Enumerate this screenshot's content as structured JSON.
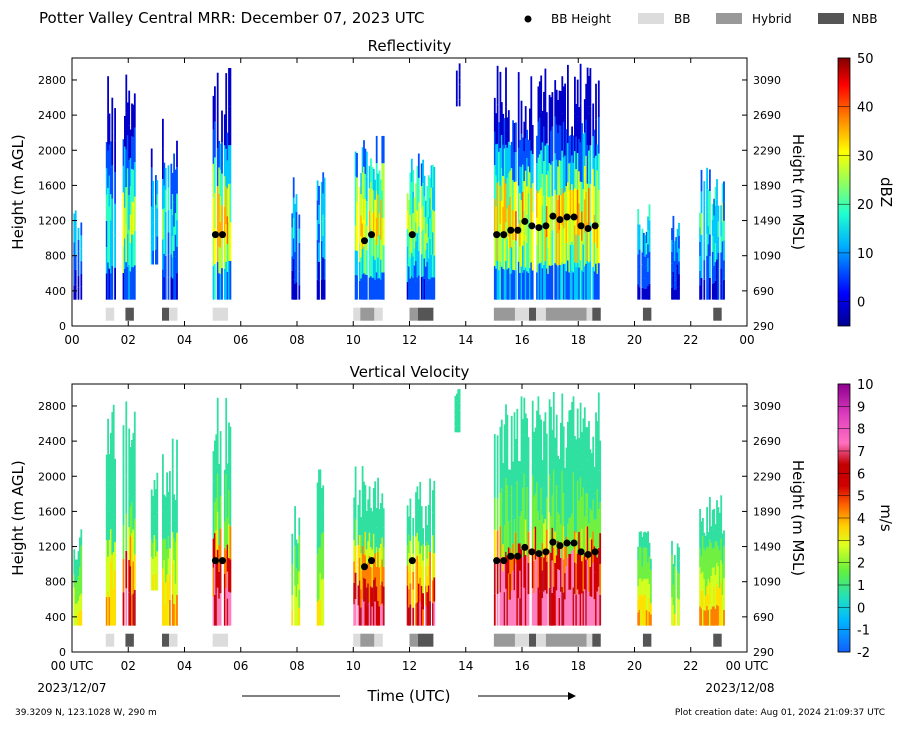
{
  "header": {
    "title": "Potter Valley Central MRR:  December 07, 2023 UTC",
    "legend": [
      {
        "label": "BB Height",
        "symbol": "dot",
        "color": "#000000"
      },
      {
        "label": "BB",
        "symbol": "box",
        "color": "#dcdcdc"
      },
      {
        "label": "Hybrid",
        "symbol": "box",
        "color": "#999999"
      },
      {
        "label": "NBB",
        "symbol": "box",
        "color": "#555555"
      }
    ]
  },
  "footer": {
    "location": "39.3209 N, 123.1028 W, 290 m",
    "creation": "Plot creation date: Aug 01, 2024 21:09:37 UTC",
    "start_date": "2023/12/07",
    "end_date": "2023/12/08",
    "xlabel": "Time (UTC)"
  },
  "chart_data": [
    {
      "type": "heatmap",
      "title": "Reflectivity",
      "ylabel": "Height (m AGL)",
      "ylabel_right": "Height (m MSL)",
      "xlim": [
        0,
        24
      ],
      "ylim": [
        0,
        3050
      ],
      "x_ticks": [
        "00",
        "02",
        "04",
        "06",
        "08",
        "10",
        "12",
        "14",
        "16",
        "18",
        "20",
        "22",
        "00"
      ],
      "y_ticks": [
        0,
        400,
        800,
        1200,
        1600,
        2000,
        2400,
        2800
      ],
      "y_ticks_right": [
        290,
        690,
        1090,
        1490,
        1890,
        2290,
        2690,
        3090
      ],
      "colorbar": {
        "label": "dBZ",
        "min": -5,
        "max": 50,
        "ticks": [
          0,
          10,
          20,
          30,
          40,
          50
        ]
      },
      "bb_height": [
        [
          5.1,
          1040
        ],
        [
          5.35,
          1040
        ],
        [
          10.4,
          970
        ],
        [
          10.65,
          1040
        ],
        [
          12.1,
          1040
        ],
        [
          15.1,
          1040
        ],
        [
          15.35,
          1040
        ],
        [
          15.6,
          1090
        ],
        [
          15.85,
          1090
        ],
        [
          16.1,
          1190
        ],
        [
          16.35,
          1140
        ],
        [
          16.6,
          1120
        ],
        [
          16.85,
          1140
        ],
        [
          17.1,
          1250
        ],
        [
          17.35,
          1210
        ],
        [
          17.6,
          1240
        ],
        [
          17.85,
          1240
        ],
        [
          18.1,
          1140
        ],
        [
          18.35,
          1110
        ],
        [
          18.6,
          1140
        ]
      ],
      "bb_type": [
        [
          1.2,
          1.5,
          "BB"
        ],
        [
          1.9,
          2.2,
          "NBB"
        ],
        [
          3.2,
          3.45,
          "NBB"
        ],
        [
          3.45,
          3.75,
          "BB"
        ],
        [
          5.0,
          5.55,
          "BB"
        ],
        [
          10.0,
          10.25,
          "BB"
        ],
        [
          10.25,
          10.75,
          "Hybrid"
        ],
        [
          10.75,
          11.05,
          "BB"
        ],
        [
          12.0,
          12.3,
          "Hybrid"
        ],
        [
          12.3,
          12.85,
          "NBB"
        ],
        [
          15.0,
          15.75,
          "Hybrid"
        ],
        [
          15.75,
          16.25,
          "BB"
        ],
        [
          16.25,
          16.5,
          "NBB"
        ],
        [
          16.5,
          16.85,
          "BB"
        ],
        [
          16.85,
          18.3,
          "Hybrid"
        ],
        [
          18.3,
          18.5,
          "BB"
        ],
        [
          18.5,
          18.8,
          "NBB"
        ],
        [
          20.3,
          20.6,
          "NBB"
        ],
        [
          22.8,
          23.1,
          "NBB"
        ]
      ]
    },
    {
      "type": "heatmap",
      "title": "Vertical Velocity",
      "ylabel": "Height (m AGL)",
      "ylabel_right": "Height (m MSL)",
      "xlim": [
        0,
        24
      ],
      "ylim": [
        0,
        3050
      ],
      "x_ticks": [
        "00 UTC",
        "02",
        "04",
        "06",
        "08",
        "10",
        "12",
        "14",
        "16",
        "18",
        "20",
        "22",
        "00 UTC"
      ],
      "y_ticks": [
        0,
        400,
        800,
        1200,
        1600,
        2000,
        2400,
        2800
      ],
      "y_ticks_right": [
        290,
        690,
        1090,
        1490,
        1890,
        2290,
        2690,
        3090
      ],
      "colorbar": {
        "label": "m/s",
        "min": -2,
        "max": 10,
        "ticks": [
          -2,
          -1,
          0,
          1,
          2,
          3,
          4,
          5,
          6,
          7,
          8,
          9,
          10
        ]
      },
      "bb_height": [
        [
          5.1,
          1040
        ],
        [
          5.35,
          1040
        ],
        [
          10.4,
          970
        ],
        [
          10.65,
          1040
        ],
        [
          12.1,
          1040
        ],
        [
          15.1,
          1040
        ],
        [
          15.35,
          1040
        ],
        [
          15.6,
          1090
        ],
        [
          15.85,
          1090
        ],
        [
          16.1,
          1190
        ],
        [
          16.35,
          1140
        ],
        [
          16.6,
          1120
        ],
        [
          16.85,
          1140
        ],
        [
          17.1,
          1250
        ],
        [
          17.35,
          1210
        ],
        [
          17.6,
          1240
        ],
        [
          17.85,
          1240
        ],
        [
          18.1,
          1140
        ],
        [
          18.35,
          1110
        ],
        [
          18.6,
          1140
        ]
      ],
      "bb_type": [
        [
          1.2,
          1.5,
          "BB"
        ],
        [
          1.9,
          2.2,
          "NBB"
        ],
        [
          3.2,
          3.45,
          "NBB"
        ],
        [
          3.45,
          3.75,
          "BB"
        ],
        [
          5.0,
          5.55,
          "BB"
        ],
        [
          10.0,
          10.25,
          "BB"
        ],
        [
          10.25,
          10.75,
          "Hybrid"
        ],
        [
          10.75,
          11.05,
          "BB"
        ],
        [
          12.0,
          12.3,
          "Hybrid"
        ],
        [
          12.3,
          12.85,
          "NBB"
        ],
        [
          15.0,
          15.75,
          "Hybrid"
        ],
        [
          15.75,
          16.25,
          "BB"
        ],
        [
          16.25,
          16.5,
          "NBB"
        ],
        [
          16.5,
          16.85,
          "BB"
        ],
        [
          16.85,
          18.3,
          "Hybrid"
        ],
        [
          18.3,
          18.5,
          "BB"
        ],
        [
          18.5,
          18.8,
          "NBB"
        ],
        [
          20.3,
          20.6,
          "NBB"
        ],
        [
          22.8,
          23.1,
          "NBB"
        ]
      ]
    }
  ]
}
